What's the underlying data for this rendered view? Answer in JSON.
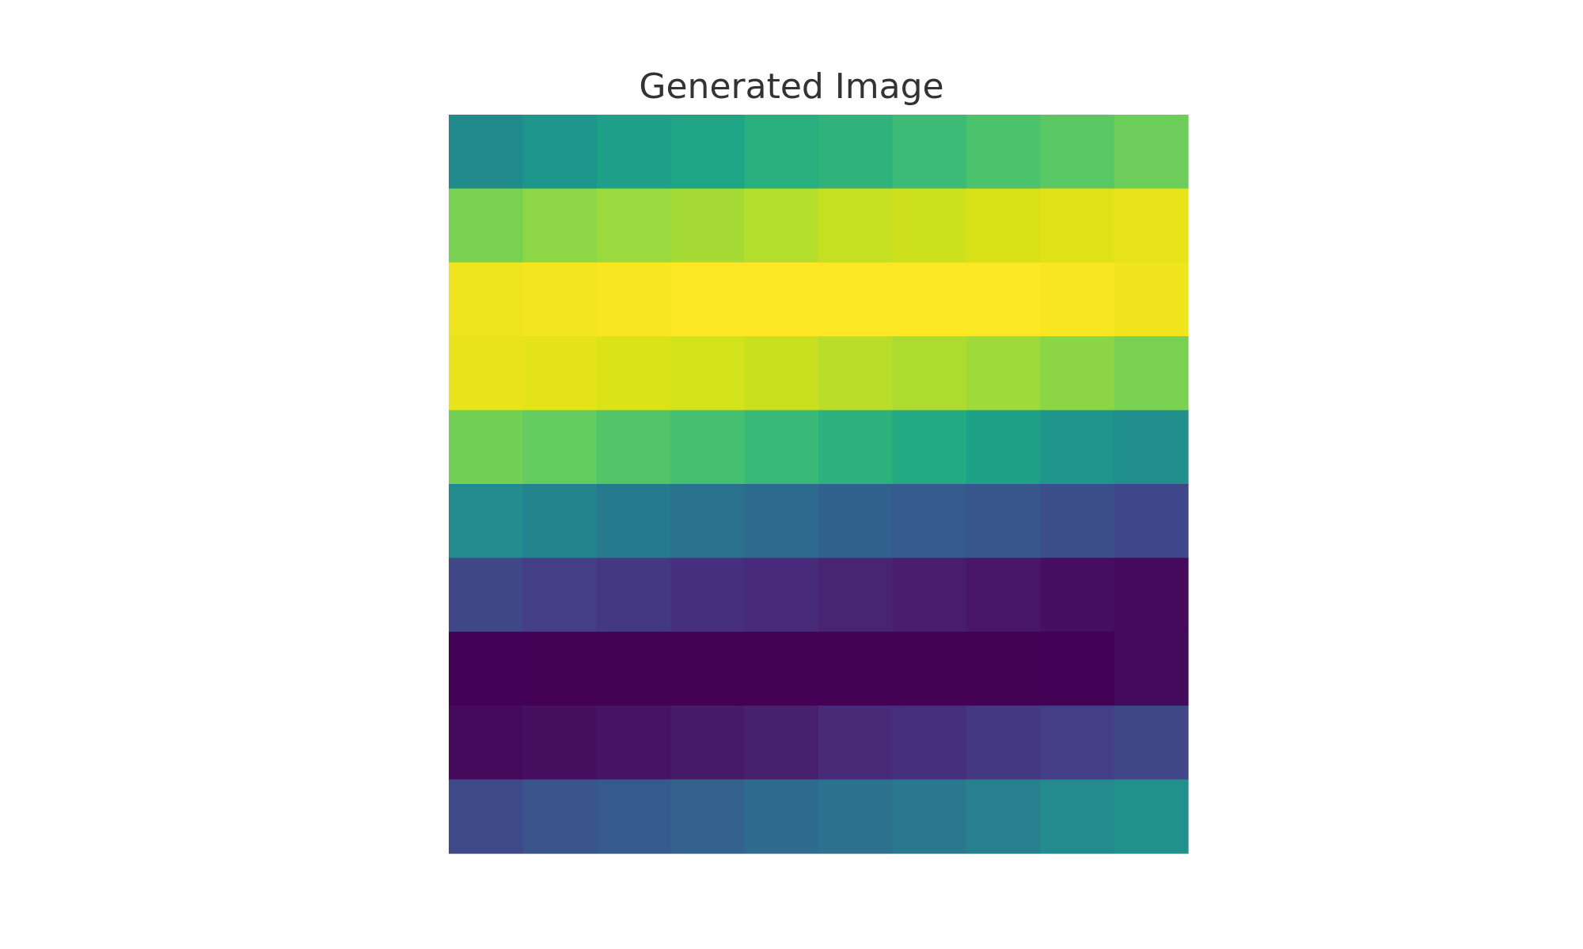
{
  "chart_data": {
    "type": "heatmap",
    "title": "Generated Image",
    "rows": 10,
    "cols": 10,
    "colors": [
      [
        "#218A8D",
        "#1E968B",
        "#1FA088",
        "#20A486",
        "#29AE80",
        "#30B37B",
        "#3BBB75",
        "#4BC36D",
        "#59C764",
        "#6CCD5A"
      ],
      [
        "#79D152",
        "#8DD645",
        "#9ADA3F",
        "#A6DB35",
        "#B4DE2C",
        "#C5E021",
        "#CDE01D",
        "#D9E116",
        "#E0E218",
        "#E8E419"
      ],
      [
        "#EEE51C",
        "#F4E61E",
        "#F8E621",
        "#FBE723",
        "#FDE725",
        "#FDE725",
        "#FDE725",
        "#FBE723",
        "#F8E621",
        "#F1E51D"
      ],
      [
        "#E8E419",
        "#E5E419",
        "#DCE218",
        "#D2E21B",
        "#C9E020",
        "#B8DE29",
        "#ADDC30",
        "#9DDA3A",
        "#8CD646",
        "#7AD151"
      ],
      [
        "#73D055",
        "#63CB5F",
        "#53C568",
        "#45BF70",
        "#38B977",
        "#2DB27D",
        "#24AA83",
        "#1FA188",
        "#1F958B",
        "#21908D"
      ],
      [
        "#228B8D",
        "#24848E",
        "#277A8E",
        "#29728E",
        "#2C6A8E",
        "#30628D",
        "#355A8C",
        "#38558C",
        "#3C4F8A",
        "#3F478A"
      ],
      [
        "#3F4788",
        "#433E85",
        "#453882",
        "#46307E",
        "#472A7A",
        "#482475",
        "#481D6F",
        "#481769",
        "#470F62",
        "#450A5C"
      ],
      [
        "#440256",
        "#440154",
        "#440154",
        "#440154",
        "#440154",
        "#440154",
        "#440154",
        "#440154",
        "#440256",
        "#440A5C"
      ],
      [
        "#450A5C",
        "#46105F",
        "#471464",
        "#471B68",
        "#48216E",
        "#472A78",
        "#46307E",
        "#453882",
        "#433E85",
        "#404688"
      ],
      [
        "#3E4989",
        "#3A548C",
        "#375A8C",
        "#33628D",
        "#2F6B8E",
        "#2C718E",
        "#29788E",
        "#26808E",
        "#228B8D",
        "#21918C"
      ]
    ]
  }
}
